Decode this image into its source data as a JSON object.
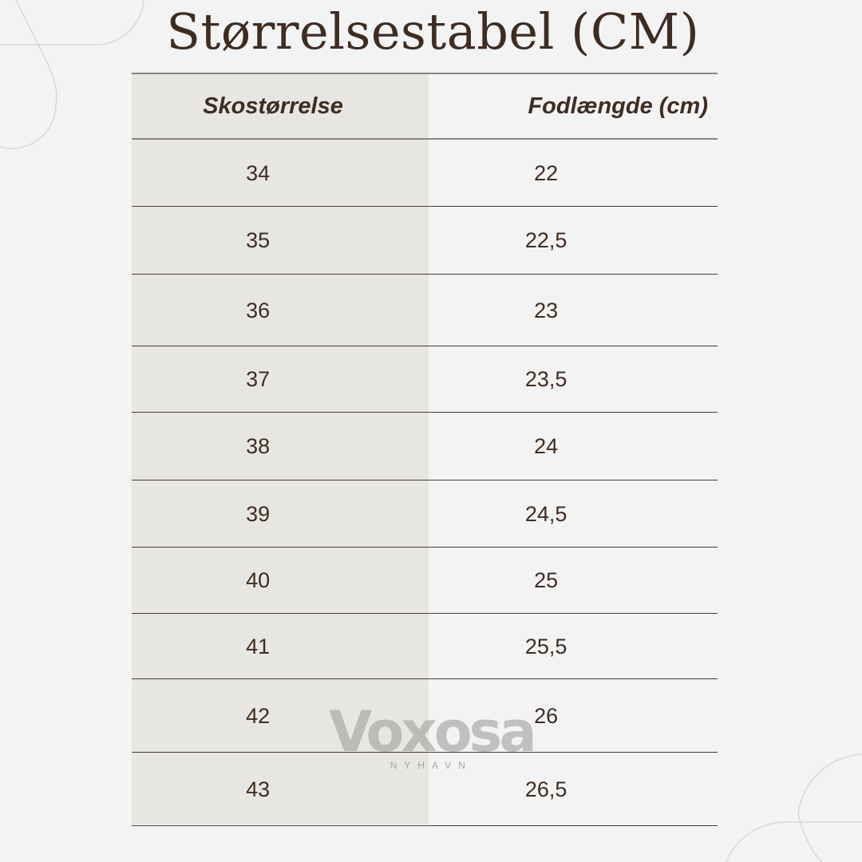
{
  "title": "Størrelsestabel (CM)",
  "table": {
    "headers": [
      "Skostørrelse",
      "Fodlængde (cm)"
    ],
    "rows": [
      [
        "34",
        "22"
      ],
      [
        "35",
        "22,5"
      ],
      [
        "36",
        "23"
      ],
      [
        "37",
        "23,5"
      ],
      [
        "38",
        "24"
      ],
      [
        "39",
        "24,5"
      ],
      [
        "40",
        "25"
      ],
      [
        "41",
        "25,5"
      ],
      [
        "42",
        "26"
      ],
      [
        "43",
        "26,5"
      ]
    ]
  },
  "watermark": {
    "brand": "Voxosa",
    "sub": "NYHAVN"
  },
  "colors": {
    "text": "#3e2c22",
    "background": "#f3f3f3",
    "column_shade": "#e8e6e2"
  }
}
